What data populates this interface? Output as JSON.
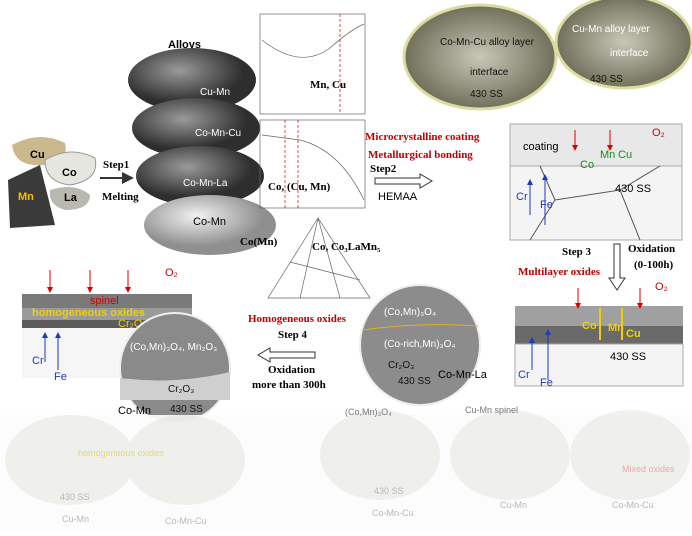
{
  "alloys": {
    "title": "Alloys",
    "names": [
      "Cu-Mn",
      "Co-Mn-Cu",
      "Co-Mn-La",
      "Co-Mn"
    ]
  },
  "elements": [
    "Cu",
    "Co",
    "Mn",
    "La"
  ],
  "step1": {
    "label": "Step1",
    "process": "Melting"
  },
  "phases": [
    "Mn, Cu",
    "Co, (Cu, Mn)",
    "Co(Mn)",
    "Co, Co₃LaMn₅"
  ],
  "step2": {
    "lines": [
      "Microcrystalline coating",
      "Metallurgical bonding"
    ],
    "label": "Step2",
    "process": "HEMAA"
  },
  "cross_sections": [
    {
      "layer": "Co-Mn-Cu alloy layer",
      "interface": "interface",
      "substrate": "430 SS"
    },
    {
      "layer": "Cu-Mn alloy layer",
      "interface": "interface",
      "substrate": "430 SS"
    }
  ],
  "coating_schematic": {
    "gas": "O₂",
    "layer": "coating",
    "species": [
      "Co",
      "Mn",
      "Cu"
    ],
    "substrate": "430 SS",
    "diffusing": [
      "Cr",
      "Fe"
    ]
  },
  "step3": {
    "label": "Step 3",
    "process": "Oxidation",
    "time": "(0-100h)",
    "result": "Multilayer oxides"
  },
  "multilayer_schematic": {
    "gas": "O₂",
    "species": [
      "Co",
      "Mn",
      "Cu"
    ],
    "substrate": "430 SS",
    "diffusing": [
      "Cr",
      "Fe"
    ]
  },
  "multilayer_section": {
    "labels": [
      "(Co,Mn)₃O₄",
      "(Co-rich,Mn)₃O₄",
      "Cr₂O₃",
      "430 SS"
    ],
    "alloy": "Co-Mn-La"
  },
  "step4": {
    "result": "Homogeneous oxides",
    "label": "Step 4",
    "process": "Oxidation",
    "time": "more than 300h"
  },
  "homogeneous_schematic": {
    "gas": "O₂",
    "top": "spinel",
    "middle": "homogeneous oxides",
    "scale": "Cr₂O₃",
    "diffusing": [
      "Cr",
      "Fe"
    ]
  },
  "homogeneous_section": {
    "labels": [
      "(Co,Mn)₃O₄, Mn₂O₃",
      "Cr₂O₃",
      "430 SS"
    ],
    "alloy": "Co-Mn"
  },
  "faded_row": {
    "labels": [
      "homogeneous oxides",
      "430 SS",
      "Cu-Mn",
      "Co-Mn-Cu",
      "(Co,Mn)₃O₄",
      "430 SS",
      "Co-Mn-Cu",
      "Cu-Mn spinel",
      "Cu-Mn",
      "Mixed oxides",
      "Co-Mn-Cu"
    ]
  }
}
